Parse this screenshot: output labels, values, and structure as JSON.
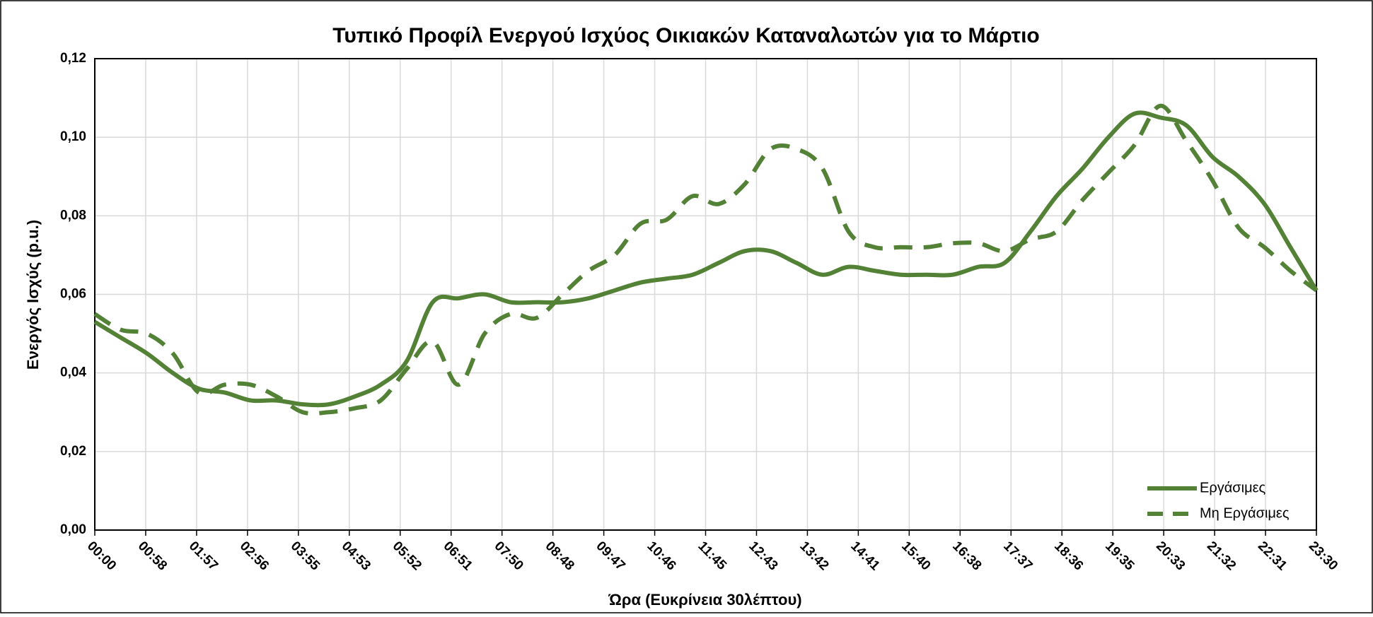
{
  "chart_data": {
    "type": "line",
    "title": "Τυπικό Προφίλ Ενεργού Ισχύος Οικιακών Καταναλωτών για το Μάρτιο",
    "x_label": "Ώρα (Ευκρίνεια 30λέπτου)",
    "y_label": "Ενεργός Ισχύς (p.u.)",
    "x": [
      0,
      30,
      60,
      90,
      120,
      150,
      180,
      210,
      240,
      270,
      300,
      330,
      360,
      390,
      420,
      450,
      480,
      510,
      540,
      570,
      600,
      630,
      660,
      690,
      720,
      750,
      780,
      810,
      840,
      870,
      900,
      930,
      960,
      990,
      1020,
      1050,
      1080,
      1110,
      1140,
      1170,
      1200,
      1230,
      1260,
      1290,
      1320,
      1350,
      1380,
      1410
    ],
    "xlim": [
      0,
      1410
    ],
    "xticks": [
      {
        "value": 0,
        "label": "00:00"
      },
      {
        "value": 58.75,
        "label": "00:58"
      },
      {
        "value": 117.5,
        "label": "01:57"
      },
      {
        "value": 176.25,
        "label": "02:56"
      },
      {
        "value": 235,
        "label": "03:55"
      },
      {
        "value": 293.75,
        "label": "04:53"
      },
      {
        "value": 352.5,
        "label": "05:52"
      },
      {
        "value": 411.25,
        "label": "06:51"
      },
      {
        "value": 470,
        "label": "07:50"
      },
      {
        "value": 528.75,
        "label": "08:48"
      },
      {
        "value": 587.5,
        "label": "09:47"
      },
      {
        "value": 646.25,
        "label": "10:46"
      },
      {
        "value": 705,
        "label": "11:45"
      },
      {
        "value": 763.75,
        "label": "12:43"
      },
      {
        "value": 822.5,
        "label": "13:42"
      },
      {
        "value": 881.25,
        "label": "14:41"
      },
      {
        "value": 940,
        "label": "15:40"
      },
      {
        "value": 998.75,
        "label": "16:38"
      },
      {
        "value": 1057.5,
        "label": "17:37"
      },
      {
        "value": 1116.25,
        "label": "18:36"
      },
      {
        "value": 1175,
        "label": "19:35"
      },
      {
        "value": 1233.75,
        "label": "20:33"
      },
      {
        "value": 1292.5,
        "label": "21:32"
      },
      {
        "value": 1351.25,
        "label": "22:31"
      },
      {
        "value": 1410,
        "label": "23:30"
      }
    ],
    "ylim": [
      0,
      0.12
    ],
    "yticks": [
      {
        "value": 0,
        "label": "0,00"
      },
      {
        "value": 0.02,
        "label": "0,02"
      },
      {
        "value": 0.04,
        "label": "0,04"
      },
      {
        "value": 0.06,
        "label": "0,06"
      },
      {
        "value": 0.08,
        "label": "0,08"
      },
      {
        "value": 0.1,
        "label": "0,10"
      },
      {
        "value": 0.12,
        "label": "0,12"
      }
    ],
    "grid": true,
    "legend": "lower right",
    "series": [
      {
        "name": "Εργάσιμες",
        "color": "#538135",
        "dash": "solid",
        "values": [
          0.053,
          0.049,
          0.045,
          0.04,
          0.036,
          0.035,
          0.033,
          0.033,
          0.032,
          0.032,
          0.034,
          0.037,
          0.043,
          0.058,
          0.059,
          0.06,
          0.058,
          0.058,
          0.058,
          0.059,
          0.061,
          0.063,
          0.064,
          0.065,
          0.068,
          0.071,
          0.071,
          0.068,
          0.065,
          0.067,
          0.066,
          0.065,
          0.065,
          0.065,
          0.067,
          0.068,
          0.076,
          0.085,
          0.092,
          0.1,
          0.106,
          0.105,
          0.103,
          0.095,
          0.09,
          0.083,
          0.072,
          0.061
        ]
      },
      {
        "name": "Μη Εργάσιμες",
        "color": "#538135",
        "dash": "dashed",
        "values": [
          0.055,
          0.051,
          0.05,
          0.045,
          0.035,
          0.037,
          0.037,
          0.034,
          0.03,
          0.03,
          0.031,
          0.033,
          0.041,
          0.048,
          0.037,
          0.05,
          0.055,
          0.054,
          0.06,
          0.066,
          0.07,
          0.078,
          0.079,
          0.085,
          0.083,
          0.088,
          0.097,
          0.097,
          0.092,
          0.076,
          0.072,
          0.072,
          0.072,
          0.073,
          0.073,
          0.071,
          0.074,
          0.076,
          0.084,
          0.091,
          0.098,
          0.108,
          0.099,
          0.089,
          0.077,
          0.072,
          0.066,
          0.061
        ]
      }
    ]
  }
}
